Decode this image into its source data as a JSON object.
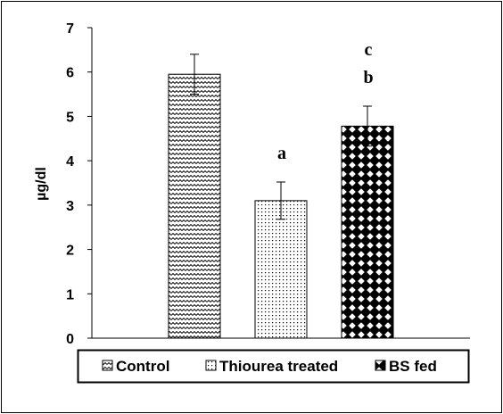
{
  "chart_data": {
    "type": "bar",
    "title": "",
    "xlabel": "",
    "ylabel": "µg/dl",
    "ylim": [
      0,
      7
    ],
    "yticks": [
      "0",
      "1",
      "2",
      "3",
      "4",
      "5",
      "6",
      "7"
    ],
    "categories": [
      "Control",
      "Thiourea treated",
      "BS fed"
    ],
    "series": [
      {
        "name": "Control",
        "value": 5.95,
        "error": 0.45,
        "pattern": "zigzag",
        "annotations": []
      },
      {
        "name": "Thiourea treated",
        "value": 3.1,
        "error": 0.42,
        "pattern": "dots",
        "annotations": [
          "a"
        ]
      },
      {
        "name": "BS fed",
        "value": 4.78,
        "error": 0.45,
        "pattern": "checker",
        "annotations": [
          "b",
          "c"
        ]
      }
    ],
    "legend": {
      "position": "bottom",
      "items": [
        "Control",
        "Thiourea treated",
        "BS fed"
      ]
    },
    "grid": false
  }
}
